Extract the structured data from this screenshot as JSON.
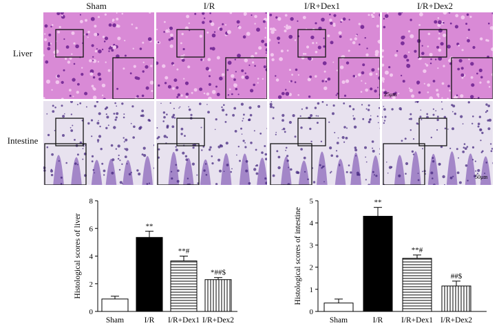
{
  "figure": {
    "column_labels": [
      "Sham",
      "I/R",
      "I/R+Dex1",
      "I/R+Dex2"
    ],
    "row_labels": [
      "Liver",
      "Intestine"
    ],
    "scale_bars": {
      "liver": "25μm",
      "intestine": "50μm"
    },
    "tissue_colors": {
      "liver_bg": "#d98ad6",
      "intestine_bg": "#e8e2ef",
      "stain": "#6a3aa8"
    }
  },
  "chart_data": [
    {
      "type": "bar",
      "title": "",
      "xlabel": "",
      "ylabel": "Histological scores of liver",
      "categories": [
        "Sham",
        "I/R",
        "I/R+Dex1",
        "I/R+Dex2"
      ],
      "values": [
        0.9,
        5.35,
        3.65,
        2.3
      ],
      "errors": [
        0.2,
        0.45,
        0.35,
        0.15
      ],
      "annotations": [
        "",
        "**",
        "**#",
        "*##$"
      ],
      "fills": [
        "open",
        "solid",
        "horizontal-stripes",
        "vertical-stripes"
      ],
      "ylim": [
        0,
        8
      ],
      "yticks": [
        0,
        2,
        4,
        6,
        8
      ],
      "grid": false
    },
    {
      "type": "bar",
      "title": "",
      "xlabel": "",
      "ylabel": "Histological scores of intestine",
      "categories": [
        "Sham",
        "I/R",
        "I/R+Dex1",
        "I/R+Dex2"
      ],
      "values": [
        0.38,
        4.3,
        2.4,
        1.15
      ],
      "errors": [
        0.18,
        0.4,
        0.15,
        0.22
      ],
      "annotations": [
        "",
        "**",
        "**#",
        "##$"
      ],
      "fills": [
        "open",
        "solid",
        "horizontal-stripes",
        "vertical-stripes"
      ],
      "ylim": [
        0,
        5
      ],
      "yticks": [
        0,
        1,
        2,
        3,
        4,
        5
      ],
      "grid": false
    }
  ]
}
